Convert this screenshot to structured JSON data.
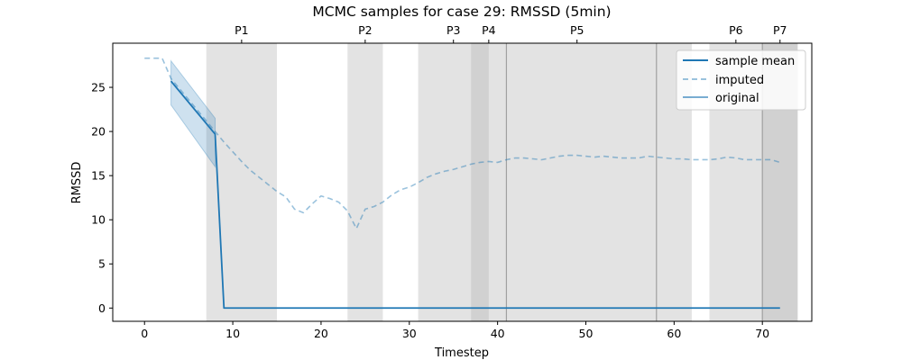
{
  "chart_data": {
    "type": "line",
    "title": "MCMC samples for case 29: RMSSD (5min)",
    "xlabel": "Timestep",
    "ylabel": "RMSSD",
    "xlim": [
      -3.6,
      75.6
    ],
    "ylim": [
      -1.5,
      30
    ],
    "xticks": [
      0,
      10,
      20,
      30,
      40,
      50,
      60,
      70
    ],
    "yticks": [
      0,
      5,
      10,
      15,
      20,
      25
    ],
    "grid": false,
    "legend_position": "top-right",
    "colors": {
      "sample_mean": "#1f77b4",
      "band": "#1f77b4",
      "phase_shade": "#b0b0b0",
      "phase_divider": "#a0a0a0"
    },
    "phases": [
      {
        "label": "P1",
        "start": 7,
        "end": 15,
        "label_x": 11
      },
      {
        "label": "P2",
        "start": 23,
        "end": 27,
        "label_x": 25
      },
      {
        "label": "P3",
        "start": 31,
        "end": 39,
        "label_x": 35
      },
      {
        "label": "P4",
        "start": 37,
        "end": 41,
        "label_x": 39
      },
      {
        "label": "P5",
        "start": 41,
        "end": 62,
        "label_x": 49
      },
      {
        "label": "P6",
        "start": 64,
        "end": 74,
        "label_x": 67
      },
      {
        "label": "P7",
        "start": 70,
        "end": 74,
        "label_x": 72
      }
    ],
    "phase_dividers": [
      41,
      58,
      70
    ],
    "series": [
      {
        "name": "sample mean",
        "style": "solid",
        "x": [
          3,
          8,
          9,
          72
        ],
        "y": [
          25.7,
          19.7,
          0,
          0
        ]
      },
      {
        "name": "imputed",
        "style": "dashed",
        "x": [
          0,
          2,
          3,
          4,
          5,
          6,
          7,
          8,
          9,
          10,
          11,
          12,
          13,
          14,
          15,
          16,
          17,
          18,
          19,
          20,
          21,
          22,
          23,
          24,
          25,
          26,
          27,
          28,
          29,
          30,
          31,
          32,
          33,
          34,
          35,
          36,
          37,
          38,
          39,
          40,
          41,
          42,
          43,
          44,
          45,
          46,
          47,
          48,
          49,
          50,
          51,
          52,
          53,
          54,
          55,
          56,
          57,
          58,
          59,
          60,
          61,
          62,
          63,
          64,
          65,
          66,
          67,
          68,
          69,
          70,
          71,
          72
        ],
        "y": [
          28.3,
          28.3,
          26.0,
          24.8,
          23.6,
          22.4,
          21.2,
          20.0,
          18.8,
          17.7,
          16.6,
          15.6,
          14.8,
          14.0,
          13.2,
          12.6,
          11.2,
          10.8,
          11.8,
          12.7,
          12.4,
          12.0,
          11.0,
          9.0,
          11.2,
          11.5,
          12.0,
          12.8,
          13.4,
          13.7,
          14.2,
          14.8,
          15.2,
          15.5,
          15.7,
          16.0,
          16.3,
          16.5,
          16.6,
          16.5,
          16.8,
          17.0,
          17.0,
          16.9,
          16.8,
          17.0,
          17.2,
          17.3,
          17.3,
          17.2,
          17.1,
          17.2,
          17.1,
          17.0,
          17.0,
          17.0,
          17.2,
          17.1,
          17.0,
          16.9,
          16.9,
          16.8,
          16.8,
          16.8,
          16.9,
          17.1,
          17.0,
          16.8,
          16.8,
          16.8,
          16.8,
          16.5
        ]
      },
      {
        "name": "original",
        "style": "solid-light",
        "x": [],
        "y": []
      }
    ],
    "band": {
      "x": [
        3,
        8
      ],
      "upper": [
        28.0,
        21.5
      ],
      "lower": [
        23.0,
        16.0
      ]
    }
  }
}
